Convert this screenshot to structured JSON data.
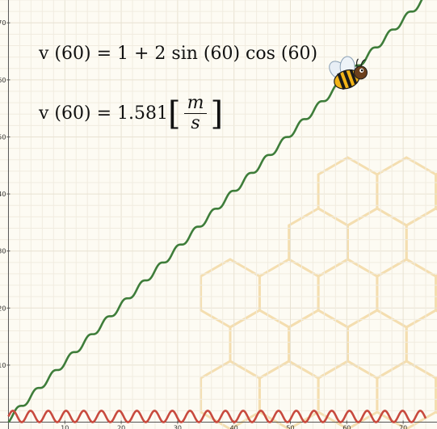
{
  "equations": {
    "line1": "v (60) = 1 + 2 sin (60) cos (60)",
    "line2_prefix": "v (60) = 1.581",
    "unit_numerator": "m",
    "unit_denominator": "s"
  },
  "chart_data": {
    "type": "line",
    "title": "",
    "xlabel": "",
    "ylabel": "",
    "xlim": [
      -1.5,
      76
    ],
    "ylim": [
      -1.2,
      74
    ],
    "x_ticks": [
      10,
      20,
      30,
      40,
      50,
      60,
      70
    ],
    "y_ticks": [
      10,
      20,
      30,
      40,
      50,
      60,
      70
    ],
    "grid": true,
    "series": [
      {
        "formula": "s(t) = t + sin^2(t)",
        "color": "#3e7d3a",
        "t_range": [
          0,
          74
        ],
        "sample_points": [
          [
            0,
            0
          ],
          [
            10,
            10.3
          ],
          [
            20,
            20.83
          ],
          [
            30,
            30.97
          ],
          [
            40,
            40.55
          ],
          [
            50,
            50.07
          ],
          [
            60,
            60.09
          ],
          [
            70,
            70.6
          ]
        ]
      },
      {
        "formula": "v(t) = 1 + 2 sin(t) cos(t)",
        "color": "#c84a3e",
        "t_range": [
          0,
          74
        ],
        "sample_points": [
          [
            0,
            1
          ],
          [
            0.785,
            2
          ],
          [
            2.356,
            0
          ],
          [
            60,
            1.581
          ]
        ]
      }
    ],
    "annotations": [
      {
        "type": "bee-marker",
        "x": 60,
        "y": 60.09
      }
    ]
  }
}
